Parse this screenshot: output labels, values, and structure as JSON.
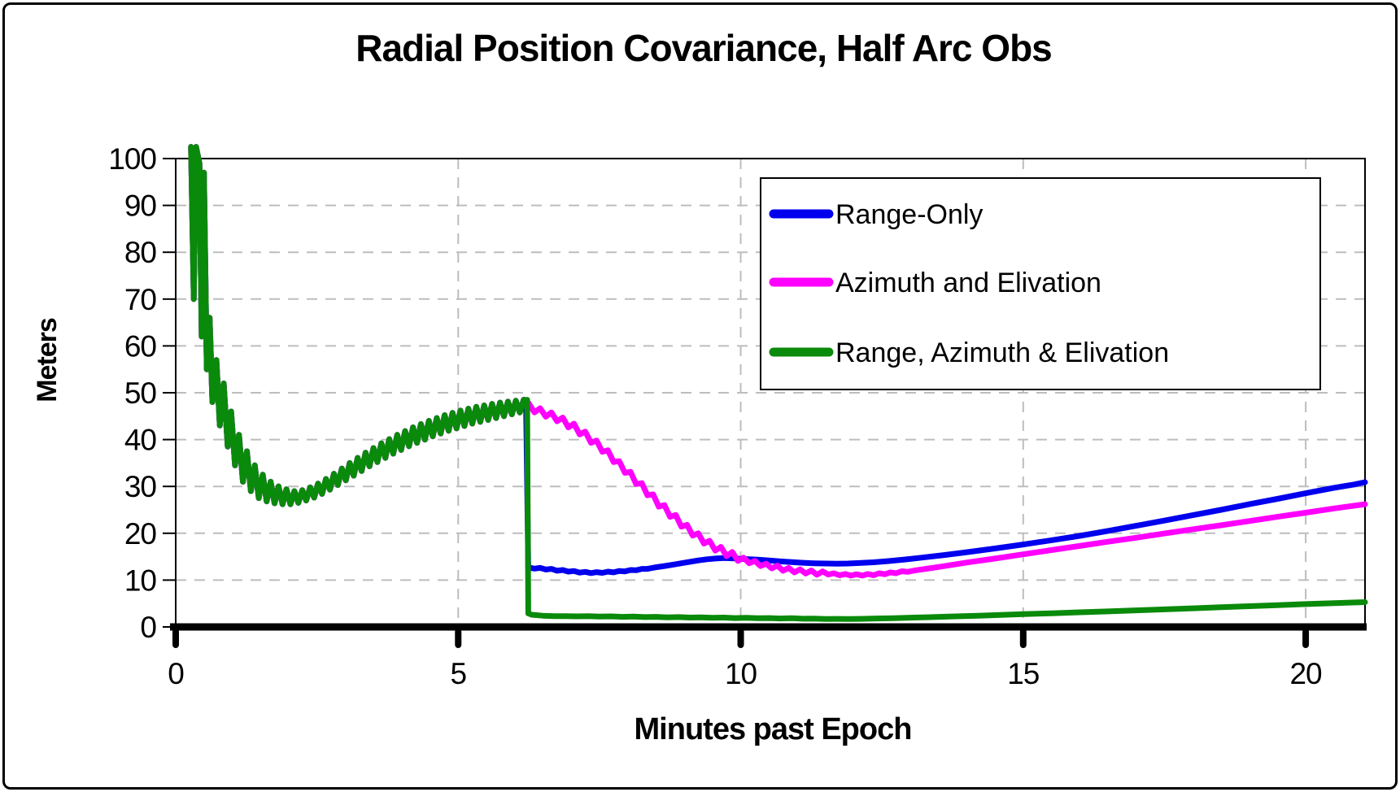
{
  "window": {
    "background": "#ffffff",
    "border_color": "#000000"
  },
  "chart_data": {
    "type": "line",
    "title": "Radial Position Covariance, Half Arc Obs",
    "xlabel": "Minutes past Epoch",
    "ylabel": "Meters",
    "xlim": [
      0,
      21.05
    ],
    "ylim": [
      0,
      100
    ],
    "xticks": [
      0,
      5,
      10,
      15,
      20
    ],
    "yticks": [
      0,
      10,
      20,
      30,
      40,
      50,
      60,
      70,
      80,
      90,
      100
    ],
    "grid": "dashed-gray",
    "grid_color": "#bdbdbd",
    "axis_color": "#000000",
    "legend": {
      "position": "top-right-inside",
      "border": true
    },
    "shared_arc_points": [
      [
        0.27,
        102.5
      ],
      [
        0.32,
        70
      ],
      [
        0.36,
        102.5
      ],
      [
        0.42,
        99
      ],
      [
        0.46,
        62
      ],
      [
        0.5,
        97
      ],
      [
        0.55,
        55
      ],
      [
        0.6,
        66
      ],
      [
        0.65,
        48
      ],
      [
        0.72,
        57
      ],
      [
        0.78,
        43
      ],
      [
        0.85,
        52
      ],
      [
        0.92,
        38.5
      ],
      [
        0.98,
        46
      ],
      [
        1.05,
        34.5
      ],
      [
        1.12,
        41
      ],
      [
        1.19,
        31
      ],
      [
        1.26,
        37.5
      ],
      [
        1.33,
        29
      ],
      [
        1.4,
        34.5
      ],
      [
        1.47,
        27.5
      ],
      [
        1.54,
        32.5
      ],
      [
        1.61,
        26.8
      ],
      [
        1.68,
        31
      ],
      [
        1.75,
        26.4
      ],
      [
        1.82,
        30
      ],
      [
        1.89,
        26.2
      ],
      [
        1.96,
        29.4
      ],
      [
        2.03,
        26.2
      ],
      [
        2.1,
        29
      ],
      [
        2.17,
        26.5
      ],
      [
        2.24,
        29.2
      ],
      [
        2.31,
        27
      ],
      [
        2.38,
        29.8
      ],
      [
        2.45,
        27.6
      ],
      [
        2.52,
        30.6
      ],
      [
        2.59,
        28.4
      ],
      [
        2.66,
        31.6
      ],
      [
        2.73,
        29.3
      ],
      [
        2.8,
        32.7
      ],
      [
        2.87,
        30.3
      ],
      [
        2.94,
        33.8
      ],
      [
        3.01,
        31.3
      ],
      [
        3.08,
        35
      ],
      [
        3.15,
        32.3
      ],
      [
        3.22,
        36.1
      ],
      [
        3.29,
        33.3
      ],
      [
        3.36,
        37.2
      ],
      [
        3.43,
        34.3
      ],
      [
        3.5,
        38.2
      ],
      [
        3.57,
        35.2
      ],
      [
        3.64,
        39.2
      ],
      [
        3.71,
        36.1
      ],
      [
        3.78,
        40.1
      ],
      [
        3.85,
        37
      ],
      [
        3.92,
        41
      ],
      [
        3.99,
        37.8
      ],
      [
        4.06,
        41.8
      ],
      [
        4.13,
        38.6
      ],
      [
        4.2,
        42.6
      ],
      [
        4.27,
        39.3
      ],
      [
        4.34,
        43.3
      ],
      [
        4.41,
        40
      ],
      [
        4.48,
        44
      ],
      [
        4.55,
        40.7
      ],
      [
        4.62,
        44.6
      ],
      [
        4.69,
        41.3
      ],
      [
        4.76,
        45.2
      ],
      [
        4.83,
        41.9
      ],
      [
        4.9,
        45.7
      ],
      [
        4.97,
        42.4
      ],
      [
        5.04,
        46.2
      ],
      [
        5.11,
        42.9
      ],
      [
        5.18,
        46.6
      ],
      [
        5.25,
        43.4
      ],
      [
        5.32,
        47
      ],
      [
        5.39,
        43.8
      ],
      [
        5.46,
        47.3
      ],
      [
        5.53,
        44.2
      ],
      [
        5.6,
        47.6
      ],
      [
        5.67,
        44.6
      ],
      [
        5.74,
        47.9
      ],
      [
        5.81,
        45
      ],
      [
        5.88,
        48.1
      ],
      [
        5.95,
        45.4
      ],
      [
        6.02,
        48.3
      ],
      [
        6.09,
        45.8
      ],
      [
        6.16,
        48.5
      ],
      [
        6.2,
        48.4
      ]
    ],
    "series": [
      {
        "name": "Range-Only",
        "color": "#0000EE",
        "includes_shared_arc": true,
        "points": [
          [
            6.24,
            12.7
          ],
          [
            6.35,
            12.45
          ],
          [
            6.45,
            12.6
          ],
          [
            6.55,
            12.25
          ],
          [
            6.65,
            12.4
          ],
          [
            6.75,
            12.0
          ],
          [
            6.85,
            12.15
          ],
          [
            6.95,
            11.8
          ],
          [
            7.05,
            11.95
          ],
          [
            7.15,
            11.6
          ],
          [
            7.25,
            11.75
          ],
          [
            7.35,
            11.5
          ],
          [
            7.45,
            11.7
          ],
          [
            7.55,
            11.55
          ],
          [
            7.65,
            11.8
          ],
          [
            7.75,
            11.65
          ],
          [
            7.85,
            11.95
          ],
          [
            7.95,
            11.85
          ],
          [
            8.05,
            12.15
          ],
          [
            8.15,
            12.1
          ],
          [
            8.25,
            12.4
          ],
          [
            8.35,
            12.4
          ],
          [
            8.5,
            12.75
          ],
          [
            8.65,
            13.0
          ],
          [
            8.8,
            13.3
          ],
          [
            8.95,
            13.6
          ],
          [
            9.1,
            13.9
          ],
          [
            9.25,
            14.2
          ],
          [
            9.4,
            14.45
          ],
          [
            9.55,
            14.6
          ],
          [
            9.7,
            14.7
          ],
          [
            9.85,
            14.65
          ],
          [
            10.0,
            14.55
          ],
          [
            10.15,
            14.45
          ],
          [
            10.3,
            14.35
          ],
          [
            10.5,
            14.2
          ],
          [
            10.7,
            14.0
          ],
          [
            10.9,
            13.85
          ],
          [
            11.1,
            13.7
          ],
          [
            11.3,
            13.6
          ],
          [
            11.5,
            13.55
          ],
          [
            11.7,
            13.5
          ],
          [
            11.9,
            13.55
          ],
          [
            12.1,
            13.65
          ],
          [
            12.35,
            13.8
          ],
          [
            12.6,
            14.05
          ],
          [
            12.9,
            14.4
          ],
          [
            13.2,
            14.8
          ],
          [
            13.6,
            15.35
          ],
          [
            14.0,
            15.95
          ],
          [
            14.5,
            16.75
          ],
          [
            15.0,
            17.6
          ],
          [
            15.5,
            18.5
          ],
          [
            16.0,
            19.45
          ],
          [
            16.5,
            20.5
          ],
          [
            17.0,
            21.6
          ],
          [
            17.5,
            22.7
          ],
          [
            18.0,
            23.85
          ],
          [
            18.5,
            25.0
          ],
          [
            19.0,
            26.2
          ],
          [
            19.5,
            27.35
          ],
          [
            20.0,
            28.55
          ],
          [
            20.5,
            29.7
          ],
          [
            20.85,
            30.4
          ],
          [
            21.05,
            30.9
          ]
        ]
      },
      {
        "name": "Azimuth and Elivation",
        "color": "#FF00FF",
        "includes_shared_arc": true,
        "points": [
          [
            6.25,
            47.7
          ],
          [
            6.35,
            45.8
          ],
          [
            6.45,
            46.7
          ],
          [
            6.55,
            44.9
          ],
          [
            6.65,
            45.8
          ],
          [
            6.75,
            43.9
          ],
          [
            6.85,
            44.7
          ],
          [
            6.95,
            42.6
          ],
          [
            7.05,
            43.4
          ],
          [
            7.15,
            41.1
          ],
          [
            7.25,
            41.7
          ],
          [
            7.35,
            39.3
          ],
          [
            7.45,
            39.8
          ],
          [
            7.55,
            37.4
          ],
          [
            7.65,
            37.7
          ],
          [
            7.75,
            35.2
          ],
          [
            7.85,
            35.4
          ],
          [
            7.95,
            32.9
          ],
          [
            8.05,
            33.1
          ],
          [
            8.15,
            30.5
          ],
          [
            8.25,
            30.7
          ],
          [
            8.35,
            28.1
          ],
          [
            8.45,
            28.3
          ],
          [
            8.55,
            25.7
          ],
          [
            8.65,
            26.0
          ],
          [
            8.75,
            23.5
          ],
          [
            8.85,
            23.9
          ],
          [
            8.95,
            21.4
          ],
          [
            9.05,
            21.8
          ],
          [
            9.15,
            19.5
          ],
          [
            9.25,
            20.0
          ],
          [
            9.35,
            17.8
          ],
          [
            9.45,
            18.4
          ],
          [
            9.55,
            16.3
          ],
          [
            9.65,
            17.1
          ],
          [
            9.75,
            15.1
          ],
          [
            9.85,
            16.0
          ],
          [
            9.95,
            14.1
          ],
          [
            10.05,
            14.8
          ],
          [
            10.15,
            13.6
          ],
          [
            10.25,
            14.1
          ],
          [
            10.35,
            13.0
          ],
          [
            10.45,
            13.5
          ],
          [
            10.55,
            12.5
          ],
          [
            10.65,
            13.1
          ],
          [
            10.75,
            12.0
          ],
          [
            10.85,
            12.6
          ],
          [
            10.95,
            11.65
          ],
          [
            11.05,
            12.3
          ],
          [
            11.15,
            11.4
          ],
          [
            11.25,
            12.05
          ],
          [
            11.35,
            11.15
          ],
          [
            11.45,
            11.85
          ],
          [
            11.55,
            11.2
          ],
          [
            11.65,
            11.45
          ],
          [
            11.75,
            11.05
          ],
          [
            11.85,
            11.3
          ],
          [
            11.95,
            10.95
          ],
          [
            12.05,
            11.25
          ],
          [
            12.15,
            10.95
          ],
          [
            12.25,
            11.3
          ],
          [
            12.35,
            11.05
          ],
          [
            12.45,
            11.45
          ],
          [
            12.55,
            11.25
          ],
          [
            12.65,
            11.65
          ],
          [
            12.75,
            11.45
          ],
          [
            12.85,
            11.9
          ],
          [
            12.95,
            11.75
          ],
          [
            13.1,
            12.1
          ],
          [
            13.5,
            12.8
          ],
          [
            14.0,
            13.75
          ],
          [
            14.5,
            14.6
          ],
          [
            15.0,
            15.5
          ],
          [
            15.5,
            16.4
          ],
          [
            16.0,
            17.3
          ],
          [
            16.5,
            18.2
          ],
          [
            17.0,
            19.05
          ],
          [
            17.5,
            19.95
          ],
          [
            18.0,
            20.85
          ],
          [
            18.5,
            21.7
          ],
          [
            19.0,
            22.6
          ],
          [
            19.5,
            23.5
          ],
          [
            20.0,
            24.4
          ],
          [
            20.5,
            25.3
          ],
          [
            21.05,
            26.2
          ]
        ]
      },
      {
        "name": "Range, Azimuth & Elivation",
        "color": "#0A8A0A",
        "includes_shared_arc": true,
        "points": [
          [
            6.22,
            48.5
          ],
          [
            6.24,
            2.9
          ],
          [
            6.3,
            2.6
          ],
          [
            6.5,
            2.4
          ],
          [
            6.7,
            2.3
          ],
          [
            6.9,
            2.3
          ],
          [
            7.1,
            2.25
          ],
          [
            7.3,
            2.3
          ],
          [
            7.5,
            2.2
          ],
          [
            7.7,
            2.25
          ],
          [
            7.9,
            2.15
          ],
          [
            8.1,
            2.2
          ],
          [
            8.3,
            2.1
          ],
          [
            8.5,
            2.15
          ],
          [
            8.7,
            2.05
          ],
          [
            8.9,
            2.1
          ],
          [
            9.1,
            2.0
          ],
          [
            9.3,
            2.05
          ],
          [
            9.5,
            1.95
          ],
          [
            9.7,
            2.0
          ],
          [
            9.9,
            1.9
          ],
          [
            10.1,
            1.95
          ],
          [
            10.3,
            1.85
          ],
          [
            10.5,
            1.9
          ],
          [
            10.7,
            1.8
          ],
          [
            10.9,
            1.85
          ],
          [
            11.1,
            1.75
          ],
          [
            11.3,
            1.78
          ],
          [
            11.5,
            1.7
          ],
          [
            11.7,
            1.72
          ],
          [
            11.9,
            1.68
          ],
          [
            12.1,
            1.72
          ],
          [
            12.4,
            1.8
          ],
          [
            12.7,
            1.88
          ],
          [
            13.0,
            1.98
          ],
          [
            13.4,
            2.1
          ],
          [
            13.8,
            2.25
          ],
          [
            14.2,
            2.4
          ],
          [
            14.6,
            2.55
          ],
          [
            15.0,
            2.72
          ],
          [
            15.5,
            2.92
          ],
          [
            16.0,
            3.12
          ],
          [
            16.5,
            3.32
          ],
          [
            17.0,
            3.55
          ],
          [
            17.5,
            3.75
          ],
          [
            18.0,
            3.98
          ],
          [
            18.5,
            4.2
          ],
          [
            19.0,
            4.42
          ],
          [
            19.5,
            4.65
          ],
          [
            20.0,
            4.87
          ],
          [
            20.5,
            5.08
          ],
          [
            21.05,
            5.3
          ]
        ]
      }
    ]
  }
}
